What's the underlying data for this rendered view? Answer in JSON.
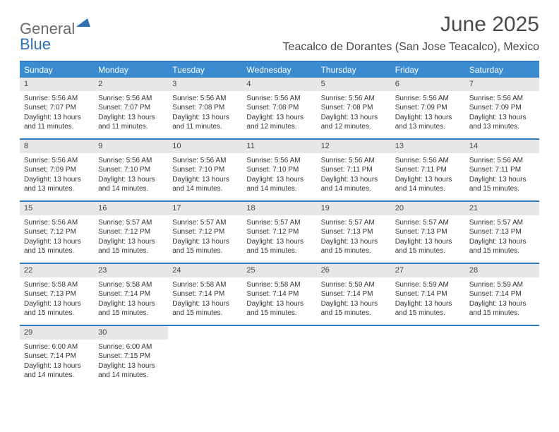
{
  "brand": {
    "part1": "General",
    "part2": "Blue"
  },
  "title": "June 2025",
  "location": "Teacalco de Dorantes (San Jose Teacalco), Mexico",
  "colors": {
    "header_bg": "#3a8bd0",
    "rule": "#2f7bbf",
    "daynum_bg": "#e7e7e7",
    "text": "#333333",
    "title_text": "#4a4a4a",
    "logo_gray": "#6a6a6a",
    "logo_blue": "#2f6fb3"
  },
  "dow": [
    "Sunday",
    "Monday",
    "Tuesday",
    "Wednesday",
    "Thursday",
    "Friday",
    "Saturday"
  ],
  "weeks": [
    [
      {
        "n": "1",
        "sr": "Sunrise: 5:56 AM",
        "ss": "Sunset: 7:07 PM",
        "d1": "Daylight: 13 hours",
        "d2": "and 11 minutes."
      },
      {
        "n": "2",
        "sr": "Sunrise: 5:56 AM",
        "ss": "Sunset: 7:07 PM",
        "d1": "Daylight: 13 hours",
        "d2": "and 11 minutes."
      },
      {
        "n": "3",
        "sr": "Sunrise: 5:56 AM",
        "ss": "Sunset: 7:08 PM",
        "d1": "Daylight: 13 hours",
        "d2": "and 11 minutes."
      },
      {
        "n": "4",
        "sr": "Sunrise: 5:56 AM",
        "ss": "Sunset: 7:08 PM",
        "d1": "Daylight: 13 hours",
        "d2": "and 12 minutes."
      },
      {
        "n": "5",
        "sr": "Sunrise: 5:56 AM",
        "ss": "Sunset: 7:08 PM",
        "d1": "Daylight: 13 hours",
        "d2": "and 12 minutes."
      },
      {
        "n": "6",
        "sr": "Sunrise: 5:56 AM",
        "ss": "Sunset: 7:09 PM",
        "d1": "Daylight: 13 hours",
        "d2": "and 13 minutes."
      },
      {
        "n": "7",
        "sr": "Sunrise: 5:56 AM",
        "ss": "Sunset: 7:09 PM",
        "d1": "Daylight: 13 hours",
        "d2": "and 13 minutes."
      }
    ],
    [
      {
        "n": "8",
        "sr": "Sunrise: 5:56 AM",
        "ss": "Sunset: 7:09 PM",
        "d1": "Daylight: 13 hours",
        "d2": "and 13 minutes."
      },
      {
        "n": "9",
        "sr": "Sunrise: 5:56 AM",
        "ss": "Sunset: 7:10 PM",
        "d1": "Daylight: 13 hours",
        "d2": "and 14 minutes."
      },
      {
        "n": "10",
        "sr": "Sunrise: 5:56 AM",
        "ss": "Sunset: 7:10 PM",
        "d1": "Daylight: 13 hours",
        "d2": "and 14 minutes."
      },
      {
        "n": "11",
        "sr": "Sunrise: 5:56 AM",
        "ss": "Sunset: 7:10 PM",
        "d1": "Daylight: 13 hours",
        "d2": "and 14 minutes."
      },
      {
        "n": "12",
        "sr": "Sunrise: 5:56 AM",
        "ss": "Sunset: 7:11 PM",
        "d1": "Daylight: 13 hours",
        "d2": "and 14 minutes."
      },
      {
        "n": "13",
        "sr": "Sunrise: 5:56 AM",
        "ss": "Sunset: 7:11 PM",
        "d1": "Daylight: 13 hours",
        "d2": "and 14 minutes."
      },
      {
        "n": "14",
        "sr": "Sunrise: 5:56 AM",
        "ss": "Sunset: 7:11 PM",
        "d1": "Daylight: 13 hours",
        "d2": "and 15 minutes."
      }
    ],
    [
      {
        "n": "15",
        "sr": "Sunrise: 5:56 AM",
        "ss": "Sunset: 7:12 PM",
        "d1": "Daylight: 13 hours",
        "d2": "and 15 minutes."
      },
      {
        "n": "16",
        "sr": "Sunrise: 5:57 AM",
        "ss": "Sunset: 7:12 PM",
        "d1": "Daylight: 13 hours",
        "d2": "and 15 minutes."
      },
      {
        "n": "17",
        "sr": "Sunrise: 5:57 AM",
        "ss": "Sunset: 7:12 PM",
        "d1": "Daylight: 13 hours",
        "d2": "and 15 minutes."
      },
      {
        "n": "18",
        "sr": "Sunrise: 5:57 AM",
        "ss": "Sunset: 7:12 PM",
        "d1": "Daylight: 13 hours",
        "d2": "and 15 minutes."
      },
      {
        "n": "19",
        "sr": "Sunrise: 5:57 AM",
        "ss": "Sunset: 7:13 PM",
        "d1": "Daylight: 13 hours",
        "d2": "and 15 minutes."
      },
      {
        "n": "20",
        "sr": "Sunrise: 5:57 AM",
        "ss": "Sunset: 7:13 PM",
        "d1": "Daylight: 13 hours",
        "d2": "and 15 minutes."
      },
      {
        "n": "21",
        "sr": "Sunrise: 5:57 AM",
        "ss": "Sunset: 7:13 PM",
        "d1": "Daylight: 13 hours",
        "d2": "and 15 minutes."
      }
    ],
    [
      {
        "n": "22",
        "sr": "Sunrise: 5:58 AM",
        "ss": "Sunset: 7:13 PM",
        "d1": "Daylight: 13 hours",
        "d2": "and 15 minutes."
      },
      {
        "n": "23",
        "sr": "Sunrise: 5:58 AM",
        "ss": "Sunset: 7:14 PM",
        "d1": "Daylight: 13 hours",
        "d2": "and 15 minutes."
      },
      {
        "n": "24",
        "sr": "Sunrise: 5:58 AM",
        "ss": "Sunset: 7:14 PM",
        "d1": "Daylight: 13 hours",
        "d2": "and 15 minutes."
      },
      {
        "n": "25",
        "sr": "Sunrise: 5:58 AM",
        "ss": "Sunset: 7:14 PM",
        "d1": "Daylight: 13 hours",
        "d2": "and 15 minutes."
      },
      {
        "n": "26",
        "sr": "Sunrise: 5:59 AM",
        "ss": "Sunset: 7:14 PM",
        "d1": "Daylight: 13 hours",
        "d2": "and 15 minutes."
      },
      {
        "n": "27",
        "sr": "Sunrise: 5:59 AM",
        "ss": "Sunset: 7:14 PM",
        "d1": "Daylight: 13 hours",
        "d2": "and 15 minutes."
      },
      {
        "n": "28",
        "sr": "Sunrise: 5:59 AM",
        "ss": "Sunset: 7:14 PM",
        "d1": "Daylight: 13 hours",
        "d2": "and 15 minutes."
      }
    ],
    [
      {
        "n": "29",
        "sr": "Sunrise: 6:00 AM",
        "ss": "Sunset: 7:14 PM",
        "d1": "Daylight: 13 hours",
        "d2": "and 14 minutes."
      },
      {
        "n": "30",
        "sr": "Sunrise: 6:00 AM",
        "ss": "Sunset: 7:15 PM",
        "d1": "Daylight: 13 hours",
        "d2": "and 14 minutes."
      },
      {
        "empty": true
      },
      {
        "empty": true
      },
      {
        "empty": true
      },
      {
        "empty": true
      },
      {
        "empty": true
      }
    ]
  ]
}
